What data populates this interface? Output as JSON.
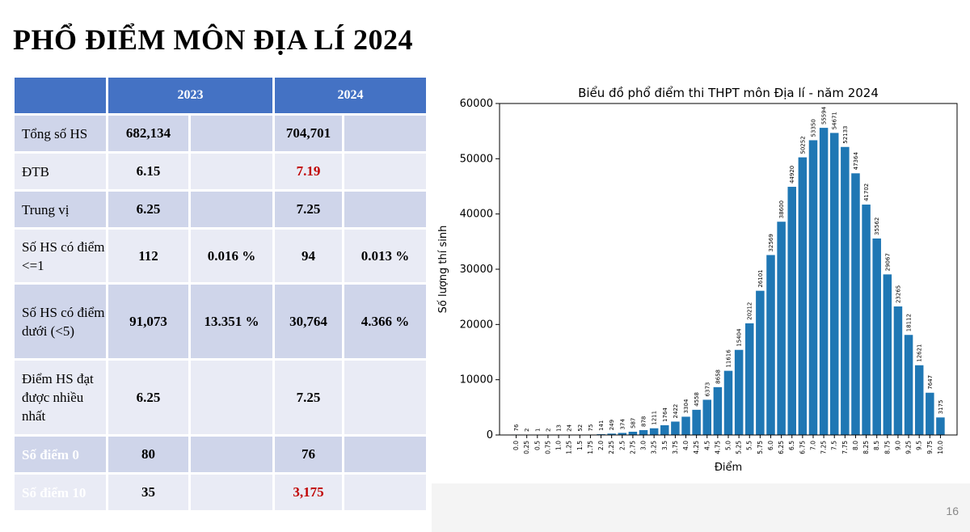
{
  "title": "PHỔ ĐIỂM MÔN ĐỊA LÍ 2024",
  "page_number": "16",
  "table": {
    "headers": [
      "",
      "2023",
      "",
      "2024",
      ""
    ],
    "rows": [
      {
        "label": "Tổng số HS",
        "v2023": "682,134",
        "p2023": "",
        "v2024": "704,701",
        "p2024": ""
      },
      {
        "label": "ĐTB",
        "v2023": "6.15",
        "p2023": "",
        "v2024": "7.19",
        "p2024": ""
      },
      {
        "label": "Trung vị",
        "v2023": "6.25",
        "p2023": "",
        "v2024": "7.25",
        "p2024": ""
      },
      {
        "label": "Số HS có điểm <=1",
        "v2023": "112",
        "p2023": "0.016 %",
        "v2024": "94",
        "p2024": "0.013 %"
      },
      {
        "label": "Số HS có điểm dưới (<5)",
        "v2023": "91,073",
        "p2023": "13.351 %",
        "v2024": "30,764",
        "p2024": "4.366 %"
      },
      {
        "label": "Điểm HS đạt được nhiều nhất",
        "v2023": "6.25",
        "p2023": "",
        "v2024": "7.25",
        "p2024": ""
      },
      {
        "label": "Số điểm 0",
        "v2023": "80",
        "p2023": "",
        "v2024": "76",
        "p2024": ""
      },
      {
        "label": "Số điểm 10",
        "v2023": "35",
        "p2023": "",
        "v2024": "3,175",
        "p2024": ""
      }
    ]
  },
  "chart_data": {
    "type": "bar",
    "title": "Biểu đồ phổ điểm thi THPT môn Địa lí - năm 2024",
    "xlabel": "Điểm",
    "ylabel": "Số lượng thí sinh",
    "ylim": [
      0,
      60000
    ],
    "yticks": [
      0,
      10000,
      20000,
      30000,
      40000,
      50000,
      60000
    ],
    "bar_color": "#1f77b4",
    "categories": [
      "0.0",
      "0.25",
      "0.5",
      "0.75",
      "1.0",
      "1.25",
      "1.5",
      "1.75",
      "2.0",
      "2.25",
      "2.5",
      "2.75",
      "3.0",
      "3.25",
      "3.5",
      "3.75",
      "4.0",
      "4.25",
      "4.5",
      "4.75",
      "5.0",
      "5.25",
      "5.5",
      "5.75",
      "6.0",
      "6.25",
      "6.5",
      "6.75",
      "7.0",
      "7.25",
      "7.5",
      "7.75",
      "8.0",
      "8.25",
      "8.5",
      "8.75",
      "9.0",
      "9.25",
      "9.5",
      "9.75",
      "10.0"
    ],
    "values": [
      76,
      2,
      1,
      2,
      13,
      24,
      52,
      75,
      141,
      249,
      374,
      587,
      878,
      1211,
      1764,
      2422,
      3304,
      4558,
      6373,
      8658,
      11616,
      15404,
      20212,
      26101,
      32569,
      38600,
      44920,
      50252,
      53350,
      55594,
      54671,
      52133,
      47364,
      41702,
      35562,
      29067,
      23265,
      18112,
      12621,
      7647,
      3175
    ]
  }
}
